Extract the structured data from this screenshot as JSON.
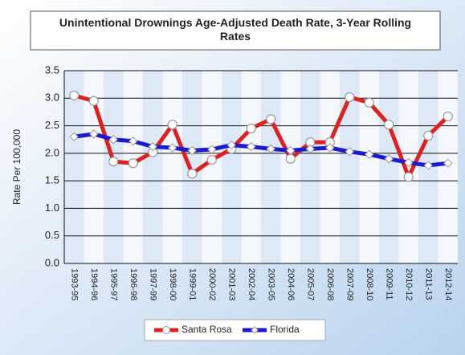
{
  "chart_data": {
    "type": "line",
    "title": "Unintentional Drownings Age-Adjusted Death Rate, 3-Year Rolling Rates",
    "y_label": "Rate Per 100,000",
    "categories": [
      "1993-95",
      "1994-96",
      "1995-97",
      "1996-98",
      "1997-99",
      "1998-00",
      "1999-01",
      "2000-02",
      "2001-03",
      "2002-04",
      "2003-05",
      "2004-06",
      "2005-07",
      "2006-08",
      "2007-09",
      "2008-10",
      "2009-11",
      "2010-12",
      "2011-13",
      "2012-14"
    ],
    "series": [
      {
        "name": "Santa Rosa",
        "color": "#e02020",
        "values": [
          3.05,
          2.95,
          1.85,
          1.82,
          2.02,
          2.52,
          1.63,
          1.88,
          2.08,
          2.45,
          2.62,
          1.9,
          2.2,
          2.2,
          3.02,
          2.92,
          2.52,
          1.57,
          2.32,
          2.67
        ]
      },
      {
        "name": "Florida",
        "color": "#1a1ad0",
        "values": [
          2.3,
          2.35,
          2.25,
          2.22,
          2.12,
          2.1,
          2.05,
          2.07,
          2.15,
          2.12,
          2.08,
          2.05,
          2.08,
          2.1,
          2.03,
          1.98,
          1.9,
          1.83,
          1.78,
          1.82
        ]
      }
    ],
    "ylim": [
      0,
      3.5
    ],
    "yticks": [
      {
        "value": 0,
        "label": "0.0"
      },
      0.5,
      {
        "value": 1,
        "label": "1.0"
      },
      1.5,
      {
        "value": 2,
        "label": "2.0"
      },
      2.5,
      {
        "value": 3,
        "label": "3.0"
      },
      3.5
    ],
    "grid": true,
    "legend": "bottom"
  }
}
